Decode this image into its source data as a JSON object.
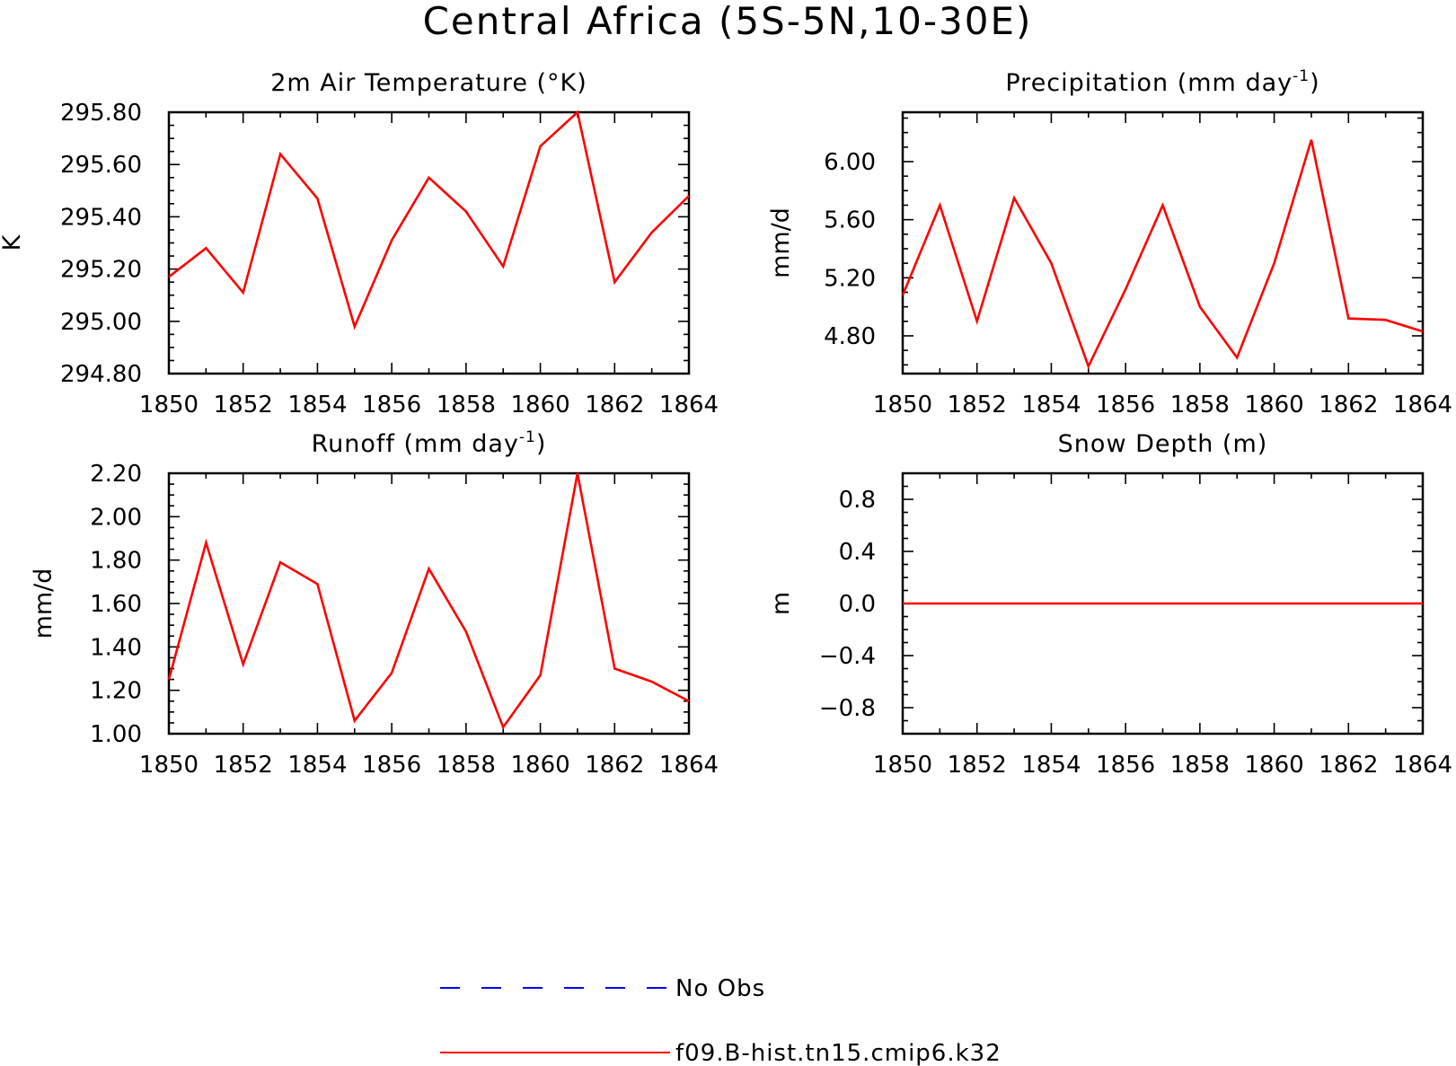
{
  "figure": {
    "title": "Central Africa (5S-5N,10-30E)"
  },
  "legend": {
    "entries": [
      {
        "label": "No Obs",
        "color": "#0000ff",
        "dashed": true
      },
      {
        "label": "f09.B-hist.tn15.cmip6.k32",
        "color": "#ff0000",
        "dashed": false
      }
    ]
  },
  "chart_data": [
    {
      "type": "line",
      "title": "2m Air Temperature (°K)",
      "title_unit_superscript": "",
      "xlabel": "",
      "ylabel": "K",
      "xlim": [
        1850,
        1864
      ],
      "ylim": [
        294.8,
        295.8
      ],
      "xticks": [
        1850,
        1852,
        1854,
        1856,
        1858,
        1860,
        1862,
        1864
      ],
      "xtick_labels": [
        "1850",
        "1852",
        "1854",
        "1856",
        "1858",
        "1860",
        "1862",
        "1864"
      ],
      "yticks": [
        294.8,
        295.0,
        295.2,
        295.4,
        295.6,
        295.8
      ],
      "ytick_labels": [
        "294.80",
        "295.00",
        "295.20",
        "295.40",
        "295.60",
        "295.80"
      ],
      "series": [
        {
          "name": "f09.B-hist.tn15.cmip6.k32",
          "color": "#ff0000",
          "x": [
            1850,
            1851,
            1852,
            1853,
            1854,
            1855,
            1856,
            1857,
            1858,
            1859,
            1860,
            1861,
            1862,
            1863,
            1864
          ],
          "values": [
            295.17,
            295.28,
            295.11,
            295.64,
            295.47,
            294.98,
            295.31,
            295.55,
            295.42,
            295.21,
            295.67,
            295.8,
            295.15,
            295.34,
            295.48
          ]
        }
      ]
    },
    {
      "type": "line",
      "title": "Precipitation (mm day",
      "title_unit_superscript": "-1",
      "xlabel": "",
      "ylabel": "mm/d",
      "xlim": [
        1850,
        1864
      ],
      "ylim": [
        4.54,
        6.34
      ],
      "xticks": [
        1850,
        1852,
        1854,
        1856,
        1858,
        1860,
        1862,
        1864
      ],
      "xtick_labels": [
        "1850",
        "1852",
        "1854",
        "1856",
        "1858",
        "1860",
        "1862",
        "1864"
      ],
      "yticks": [
        4.8,
        5.2,
        5.6,
        6.0
      ],
      "ytick_labels": [
        "4.80",
        "5.20",
        "5.60",
        "6.00"
      ],
      "series": [
        {
          "name": "f09.B-hist.tn15.cmip6.k32",
          "color": "#ff0000",
          "x": [
            1850,
            1851,
            1852,
            1853,
            1854,
            1855,
            1856,
            1857,
            1858,
            1859,
            1860,
            1861,
            1862,
            1863,
            1864
          ],
          "values": [
            5.08,
            5.7,
            4.9,
            5.75,
            5.3,
            4.59,
            5.12,
            5.7,
            5.0,
            4.65,
            5.3,
            6.15,
            4.92,
            4.91,
            4.83
          ]
        }
      ]
    },
    {
      "type": "line",
      "title": "Runoff (mm day",
      "title_unit_superscript": "-1",
      "xlabel": "",
      "ylabel": "mm/d",
      "xlim": [
        1850,
        1864
      ],
      "ylim": [
        1.0,
        2.2
      ],
      "xticks": [
        1850,
        1852,
        1854,
        1856,
        1858,
        1860,
        1862,
        1864
      ],
      "xtick_labels": [
        "1850",
        "1852",
        "1854",
        "1856",
        "1858",
        "1860",
        "1862",
        "1864"
      ],
      "yticks": [
        1.0,
        1.2,
        1.4,
        1.6,
        1.8,
        2.0,
        2.2
      ],
      "ytick_labels": [
        "1.00",
        "1.20",
        "1.40",
        "1.60",
        "1.80",
        "2.00",
        "2.20"
      ],
      "series": [
        {
          "name": "f09.B-hist.tn15.cmip6.k32",
          "color": "#ff0000",
          "x": [
            1850,
            1851,
            1852,
            1853,
            1854,
            1855,
            1856,
            1857,
            1858,
            1859,
            1860,
            1861,
            1862,
            1863,
            1864
          ],
          "values": [
            1.25,
            1.88,
            1.32,
            1.79,
            1.69,
            1.06,
            1.28,
            1.76,
            1.47,
            1.03,
            1.27,
            2.2,
            1.3,
            1.24,
            1.15
          ]
        }
      ]
    },
    {
      "type": "line",
      "title": "Snow Depth (m)",
      "title_unit_superscript": "",
      "xlabel": "",
      "ylabel": "m",
      "xlim": [
        1850,
        1864
      ],
      "ylim": [
        -1.0,
        1.0
      ],
      "xticks": [
        1850,
        1852,
        1854,
        1856,
        1858,
        1860,
        1862,
        1864
      ],
      "xtick_labels": [
        "1850",
        "1852",
        "1854",
        "1856",
        "1858",
        "1860",
        "1862",
        "1864"
      ],
      "yticks": [
        -0.8,
        -0.4,
        0.0,
        0.4,
        0.8
      ],
      "ytick_labels": [
        "−0.8",
        "−0.4",
        "0.0",
        "0.4",
        "0.8"
      ],
      "series": [
        {
          "name": "f09.B-hist.tn15.cmip6.k32",
          "color": "#ff0000",
          "x": [
            1850,
            1851,
            1852,
            1853,
            1854,
            1855,
            1856,
            1857,
            1858,
            1859,
            1860,
            1861,
            1862,
            1863,
            1864
          ],
          "values": [
            0,
            0,
            0,
            0,
            0,
            0,
            0,
            0,
            0,
            0,
            0,
            0,
            0,
            0,
            0
          ]
        }
      ]
    }
  ]
}
